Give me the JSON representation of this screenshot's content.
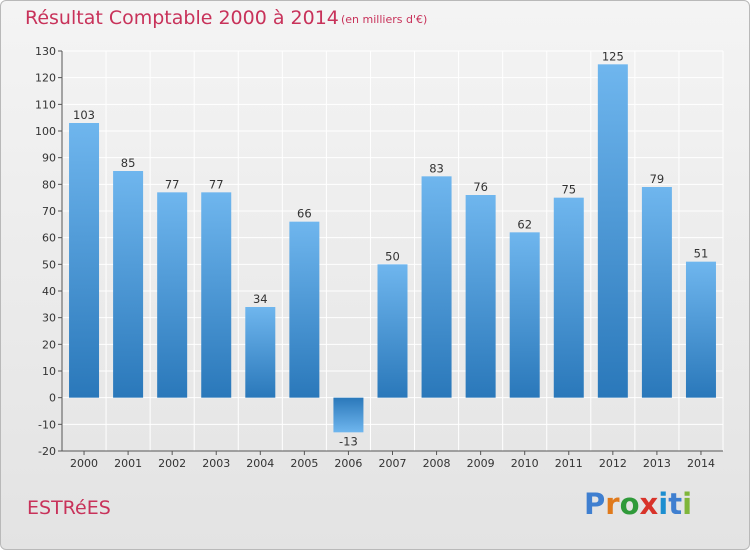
{
  "header": {
    "title": "Résultat Comptable 2000 à 2014",
    "subtitle": "(en milliers d'€)"
  },
  "footer": {
    "town": "ESTRéES",
    "logo_letters": [
      "P",
      "r",
      "o",
      "x",
      "i",
      "t",
      "i"
    ],
    "logo_colors": [
      "#3f7fd0",
      "#e07a1c",
      "#2f9a3a",
      "#d8332a",
      "#1b8ed0",
      "#3f7fd0",
      "#7fb63a"
    ]
  },
  "colors": {
    "accent": "#c8325a",
    "bar_light": "#6fb6ee",
    "bar_dark": "#2a78ba",
    "grid": "#ffffff"
  },
  "chart_data": {
    "type": "bar",
    "title": "Résultat Comptable 2000 à 2014",
    "subtitle": "(en milliers d'€)",
    "xlabel": "",
    "ylabel": "",
    "categories": [
      "2000",
      "2001",
      "2002",
      "2003",
      "2004",
      "2005",
      "2006",
      "2007",
      "2008",
      "2009",
      "2010",
      "2011",
      "2012",
      "2013",
      "2014"
    ],
    "values": [
      103,
      85,
      77,
      77,
      34,
      66,
      -13,
      50,
      83,
      76,
      62,
      75,
      125,
      79,
      51
    ],
    "ylim": [
      -20,
      130
    ],
    "yticks": [
      -20,
      -10,
      0,
      10,
      20,
      30,
      40,
      50,
      60,
      70,
      80,
      90,
      100,
      110,
      120,
      130
    ],
    "grid": true
  }
}
